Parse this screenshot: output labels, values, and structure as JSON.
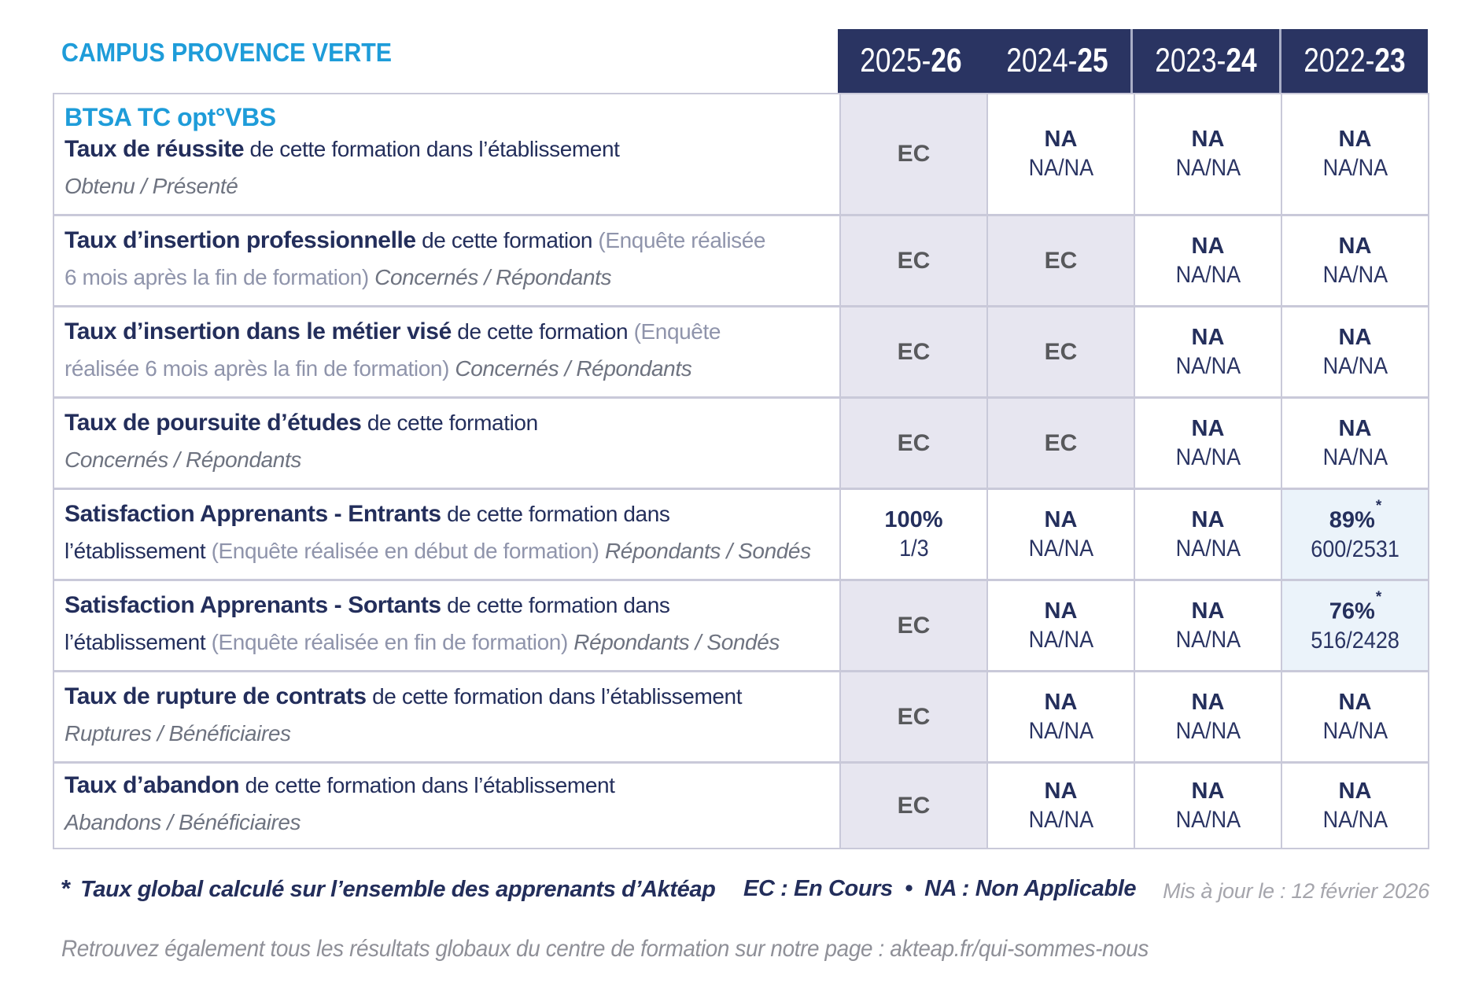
{
  "colors": {
    "accent_blue": "#1E9CD9",
    "navy_text": "#232E5B",
    "header_bg": "#2A3462",
    "cell_gray_bg": "#E7E6F0",
    "cell_blue_bg": "#EBF3FA",
    "ec_text_gray": "#58595C",
    "border": "#C9C9D9"
  },
  "header": {
    "title": "CAMPUS PROVENCE VERTE"
  },
  "table": {
    "program": "BTSA TC opt°VBS",
    "year_headers": [
      {
        "start": "2025-",
        "end": "26"
      },
      {
        "start": "2024-",
        "end": "25"
      },
      {
        "start": "2023-",
        "end": "24"
      },
      {
        "start": "2022-",
        "end": "23"
      }
    ],
    "rows": [
      {
        "label_lines": [
          [
            {
              "s": "bold",
              "t": "Taux de réussite"
            },
            {
              "s": "reg",
              "t": " de cette formation dans l’établissement"
            }
          ],
          [
            {
              "s": "ital",
              "t": "Obtenu / Présenté"
            }
          ]
        ],
        "cells": [
          {
            "bg": "gray",
            "main": "EC",
            "style": "ec"
          },
          {
            "bg": "white",
            "main": "NA",
            "sub": "NA/NA"
          },
          {
            "bg": "white",
            "main": "NA",
            "sub": "NA/NA"
          },
          {
            "bg": "white",
            "main": "NA",
            "sub": "NA/NA"
          }
        ]
      },
      {
        "label_lines": [
          [
            {
              "s": "bold",
              "t": "Taux d’insertion professionnelle"
            },
            {
              "s": "reg",
              "t": " de cette formation "
            },
            {
              "s": "paren",
              "t": "(Enquête réalisée"
            }
          ],
          [
            {
              "s": "paren",
              "t": "6 mois après la fin de formation)"
            },
            {
              "s": "ital",
              "t": " Concernés / Répondants"
            }
          ]
        ],
        "cells": [
          {
            "bg": "gray",
            "main": "EC",
            "style": "ec"
          },
          {
            "bg": "gray",
            "main": "EC",
            "style": "ec"
          },
          {
            "bg": "white",
            "main": "NA",
            "sub": "NA/NA"
          },
          {
            "bg": "white",
            "main": "NA",
            "sub": "NA/NA"
          }
        ]
      },
      {
        "label_lines": [
          [
            {
              "s": "bold",
              "t": "Taux d’insertion dans le métier visé"
            },
            {
              "s": "reg",
              "t": " de cette formation "
            },
            {
              "s": "paren",
              "t": "(Enquête"
            }
          ],
          [
            {
              "s": "paren",
              "t": "réalisée 6 mois après la fin de formation)"
            },
            {
              "s": "ital",
              "t": " Concernés / Répondants"
            }
          ]
        ],
        "cells": [
          {
            "bg": "gray",
            "main": "EC",
            "style": "ec"
          },
          {
            "bg": "gray",
            "main": "EC",
            "style": "ec"
          },
          {
            "bg": "white",
            "main": "NA",
            "sub": "NA/NA"
          },
          {
            "bg": "white",
            "main": "NA",
            "sub": "NA/NA"
          }
        ]
      },
      {
        "label_lines": [
          [
            {
              "s": "bold",
              "t": "Taux de poursuite d’études"
            },
            {
              "s": "reg",
              "t": " de cette formation"
            }
          ],
          [
            {
              "s": "ital",
              "t": "Concernés / Répondants"
            }
          ]
        ],
        "cells": [
          {
            "bg": "gray",
            "main": "EC",
            "style": "ec"
          },
          {
            "bg": "gray",
            "main": "EC",
            "style": "ec"
          },
          {
            "bg": "white",
            "main": "NA",
            "sub": "NA/NA"
          },
          {
            "bg": "white",
            "main": "NA",
            "sub": "NA/NA"
          }
        ]
      },
      {
        "label_lines": [
          [
            {
              "s": "bold",
              "t": "Satisfaction Apprenants - Entrants"
            },
            {
              "s": "reg",
              "t": " de cette formation dans"
            }
          ],
          [
            {
              "s": "reg",
              "t": "l’établissement "
            },
            {
              "s": "paren",
              "t": "(Enquête réalisée en début de formation)"
            },
            {
              "s": "ital",
              "t": " Répondants / Sondés"
            }
          ]
        ],
        "cells": [
          {
            "bg": "white",
            "main": "100%",
            "sub": "1/3"
          },
          {
            "bg": "white",
            "main": "NA",
            "sub": "NA/NA"
          },
          {
            "bg": "white",
            "main": "NA",
            "sub": "NA/NA"
          },
          {
            "bg": "blue",
            "main": "89%",
            "sup": "*",
            "sub": "600/2531"
          }
        ]
      },
      {
        "label_lines": [
          [
            {
              "s": "bold",
              "t": "Satisfaction Apprenants - Sortants"
            },
            {
              "s": "reg",
              "t": " de cette formation dans"
            }
          ],
          [
            {
              "s": "reg",
              "t": "l’établissement "
            },
            {
              "s": "paren",
              "t": "(Enquête réalisée en fin de formation)"
            },
            {
              "s": "ital",
              "t": " Répondants / Sondés"
            }
          ]
        ],
        "cells": [
          {
            "bg": "gray",
            "main": "EC",
            "style": "ec"
          },
          {
            "bg": "white",
            "main": "NA",
            "sub": "NA/NA"
          },
          {
            "bg": "white",
            "main": "NA",
            "sub": "NA/NA"
          },
          {
            "bg": "blue",
            "main": "76%",
            "sup": "*",
            "sub": "516/2428"
          }
        ]
      },
      {
        "label_lines": [
          [
            {
              "s": "bold",
              "t": "Taux de rupture de contrats"
            },
            {
              "s": "reg",
              "t": " de cette formation dans l’établissement"
            }
          ],
          [
            {
              "s": "ital",
              "t": "Ruptures / Bénéficiaires"
            }
          ]
        ],
        "cells": [
          {
            "bg": "gray",
            "main": "EC",
            "style": "ec"
          },
          {
            "bg": "white",
            "main": "NA",
            "sub": "NA/NA"
          },
          {
            "bg": "white",
            "main": "NA",
            "sub": "NA/NA"
          },
          {
            "bg": "white",
            "main": "NA",
            "sub": "NA/NA"
          }
        ]
      },
      {
        "label_lines": [
          [
            {
              "s": "bold",
              "t": "Taux d’abandon"
            },
            {
              "s": "reg",
              "t": " de cette formation dans l’établissement"
            }
          ],
          [
            {
              "s": "ital",
              "t": "Abandons / Bénéficiaires"
            }
          ]
        ],
        "cells": [
          {
            "bg": "gray",
            "main": "EC",
            "style": "ec"
          },
          {
            "bg": "white",
            "main": "NA",
            "sub": "NA/NA"
          },
          {
            "bg": "white",
            "main": "NA",
            "sub": "NA/NA"
          },
          {
            "bg": "white",
            "main": "NA",
            "sub": "NA/NA"
          }
        ]
      }
    ]
  },
  "footer": {
    "note_star": "*",
    "note": "Taux global calculé sur l’ensemble des apprenants d’Aktéap",
    "legend": "EC : En Cours  •  NA : Non Applicable",
    "updated": "Mis à jour le : 12 février 2026"
  },
  "bottom_line": "Retrouvez également tous les résultats globaux du centre de formation sur notre page : akteap.fr/qui-sommes-nous"
}
